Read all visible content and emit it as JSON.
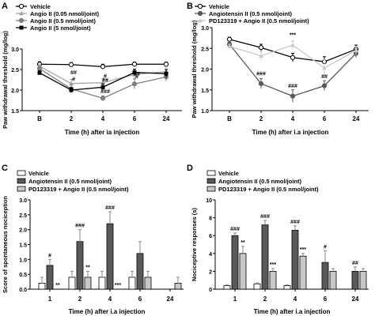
{
  "colors": {
    "vehicle": "#ffffff",
    "low": "#a6a6a6",
    "mid": "#7f7f7f",
    "high": "#000000",
    "ang": "#595959",
    "pd": "#c8c8c8",
    "err": "#8a8a8a"
  },
  "chart_data": [
    {
      "panel": "A",
      "type": "line",
      "ylabel": "Paw withdrawal threshold (mg/log)",
      "xlabel": "Time (h) after ia injection",
      "categories": [
        "B",
        "2",
        "4",
        "6",
        "24"
      ],
      "ylim": [
        1.5,
        3.0
      ],
      "yticks": [
        "1.5",
        "2.0",
        "2.5",
        "3.0"
      ],
      "legend": [
        "Vehicle",
        "Angio II (0.05 nmol/joint)",
        "Angio II (0.5 nmol/joint)",
        "Angio II (5 nmol/joint)"
      ],
      "series": [
        {
          "name": "Vehicle",
          "values": [
            2.63,
            2.62,
            2.57,
            2.63,
            2.63
          ],
          "errors": [
            0.06,
            0.05,
            0.06,
            0.05,
            0.05
          ]
        },
        {
          "name": "Angio II (0.05 nmol/joint)",
          "values": [
            2.58,
            2.16,
            2.18,
            2.38,
            2.45
          ],
          "errors": [
            0.05,
            0.1,
            0.1,
            0.1,
            0.12
          ]
        },
        {
          "name": "Angio II (0.5 nmol/joint)",
          "values": [
            2.52,
            2.03,
            1.8,
            2.15,
            2.32
          ],
          "errors": [
            0.05,
            0.1,
            0.06,
            0.12,
            0.1
          ]
        },
        {
          "name": "Angio II (5 nmol/joint)",
          "values": [
            2.42,
            2.0,
            2.07,
            2.43,
            2.4
          ],
          "errors": [
            0.05,
            0.06,
            0.08,
            0.08,
            0.1
          ]
        }
      ],
      "annotations": [
        {
          "category": "2",
          "text": "##",
          "value": 2.38
        },
        {
          "category": "2",
          "text": "#",
          "value": 2.22
        },
        {
          "category": "4",
          "text": "#",
          "value": 2.3
        },
        {
          "category": "4",
          "text": "##",
          "value": 2.2
        },
        {
          "category": "4",
          "text": "###",
          "value": 1.92
        },
        {
          "category": "6",
          "text": "##",
          "value": 2.35
        },
        {
          "category": "6",
          "text": "#",
          "value": 2.28
        }
      ]
    },
    {
      "panel": "B",
      "type": "line",
      "ylabel": "Paw withdrawal threshold (mg/log)",
      "xlabel": "Time (h) after i.a injection",
      "categories": [
        "B",
        "2",
        "4",
        "6",
        "24"
      ],
      "ylim": [
        1.0,
        3.0
      ],
      "yticks": [
        "1.0",
        "1.5",
        "2.0",
        "2.5",
        "3.0"
      ],
      "legend": [
        "Vehicle",
        "Angiotensin II (0.5 nmol/joint)",
        "PD123319 + Angio II (0.5 nmol/joint)"
      ],
      "series": [
        {
          "name": "Vehicle",
          "values": [
            2.72,
            2.52,
            2.28,
            2.18,
            2.48
          ],
          "errors": [
            0.05,
            0.08,
            0.1,
            0.12,
            0.1
          ]
        },
        {
          "name": "Angiotensin II (0.5 nmol/joint)",
          "values": [
            2.6,
            1.65,
            1.35,
            1.6,
            2.38
          ],
          "errors": [
            0.05,
            0.12,
            0.15,
            0.12,
            0.1
          ]
        },
        {
          "name": "PD123319 + Angio II (0.5 nmol/joint)",
          "values": [
            2.55,
            2.32,
            2.58,
            2.03,
            2.45
          ],
          "errors": [
            0.05,
            0.1,
            0.1,
            0.2,
            0.1
          ]
        }
      ],
      "annotations": [
        {
          "category": "4",
          "text": "***",
          "value": 2.78
        },
        {
          "category": "2",
          "text": "###",
          "value": 1.85
        },
        {
          "category": "4",
          "text": "###",
          "value": 1.55
        },
        {
          "category": "6",
          "text": "##",
          "value": 1.78
        }
      ]
    },
    {
      "panel": "C",
      "type": "bar",
      "ylabel": "Score of spontaneous nociception",
      "xlabel": "Time (h) after i.a injection",
      "categories": [
        "1",
        "2",
        "4",
        "6",
        "24"
      ],
      "ylim": [
        0.0,
        3.0
      ],
      "yticks": [
        "0.0",
        "0.5",
        "1.0",
        "1.5",
        "2.0",
        "2.5",
        "3.0"
      ],
      "legend": [
        "Vehicle",
        "Angiotensin II (0.5 nmol/joint)",
        "PD123319 + Angio II (0.5 nmol/joint)"
      ],
      "series": [
        {
          "name": "Vehicle",
          "values": [
            0.2,
            0.4,
            0.4,
            0.4,
            0.0
          ],
          "errors": [
            0.2,
            0.2,
            0.2,
            0.2,
            0.0
          ]
        },
        {
          "name": "Angiotensin II (0.5 nmol/joint)",
          "values": [
            0.8,
            1.6,
            2.2,
            1.2,
            0.0
          ],
          "errors": [
            0.2,
            0.4,
            0.4,
            0.4,
            0.0
          ]
        },
        {
          "name": "PD123319 + Angio II (0.5 nmol/joint)",
          "values": [
            0.0,
            0.4,
            0.0,
            0.4,
            0.2
          ],
          "errors": [
            0.0,
            0.2,
            0.0,
            0.2,
            0.2
          ]
        }
      ],
      "annotations": [
        {
          "category": "1",
          "series": 1,
          "text": "#"
        },
        {
          "category": "1",
          "series": 2,
          "text": "**"
        },
        {
          "category": "2",
          "series": 1,
          "text": "###"
        },
        {
          "category": "2",
          "series": 2,
          "text": "**"
        },
        {
          "category": "4",
          "series": 1,
          "text": "###"
        },
        {
          "category": "4",
          "series": 2,
          "text": "***"
        }
      ]
    },
    {
      "panel": "D",
      "type": "bar",
      "ylabel": "Nociceptive responses (s)",
      "xlabel": "Time (h) after i.a injection",
      "categories": [
        "1",
        "2",
        "4",
        "6",
        "24"
      ],
      "ylim": [
        0,
        10
      ],
      "yticks": [
        "0",
        "2",
        "4",
        "6",
        "8",
        "10"
      ],
      "legend": [
        "Vehicle",
        "Angiotensin II (0.5 nmol/joint)",
        "PD123319 + Angio II (0.5 nmol/joint)"
      ],
      "series": [
        {
          "name": "Vehicle",
          "values": [
            0.4,
            0.6,
            0.4,
            0.0,
            0.0
          ],
          "errors": [
            0.1,
            0.1,
            0.1,
            0.0,
            0.0
          ]
        },
        {
          "name": "Angiotensin II (0.5 nmol/joint)",
          "values": [
            6.0,
            7.2,
            6.6,
            3.0,
            2.0
          ],
          "errors": [
            0.3,
            0.5,
            0.5,
            1.3,
            0.5
          ]
        },
        {
          "name": "PD123319 + Angio II (0.5 nmol/joint)",
          "values": [
            4.0,
            2.0,
            3.7,
            2.0,
            2.0
          ],
          "errors": [
            0.8,
            0.3,
            0.3,
            0.3,
            0.3
          ]
        }
      ],
      "annotations": [
        {
          "category": "1",
          "series": 1,
          "text": "###"
        },
        {
          "category": "1",
          "series": 2,
          "text": "**"
        },
        {
          "category": "2",
          "series": 1,
          "text": "###"
        },
        {
          "category": "2",
          "series": 2,
          "text": "***"
        },
        {
          "category": "4",
          "series": 1,
          "text": "###"
        },
        {
          "category": "4",
          "series": 2,
          "text": "***"
        },
        {
          "category": "6",
          "series": 1,
          "text": "#"
        },
        {
          "category": "24",
          "series": 1,
          "text": "##"
        }
      ]
    }
  ]
}
